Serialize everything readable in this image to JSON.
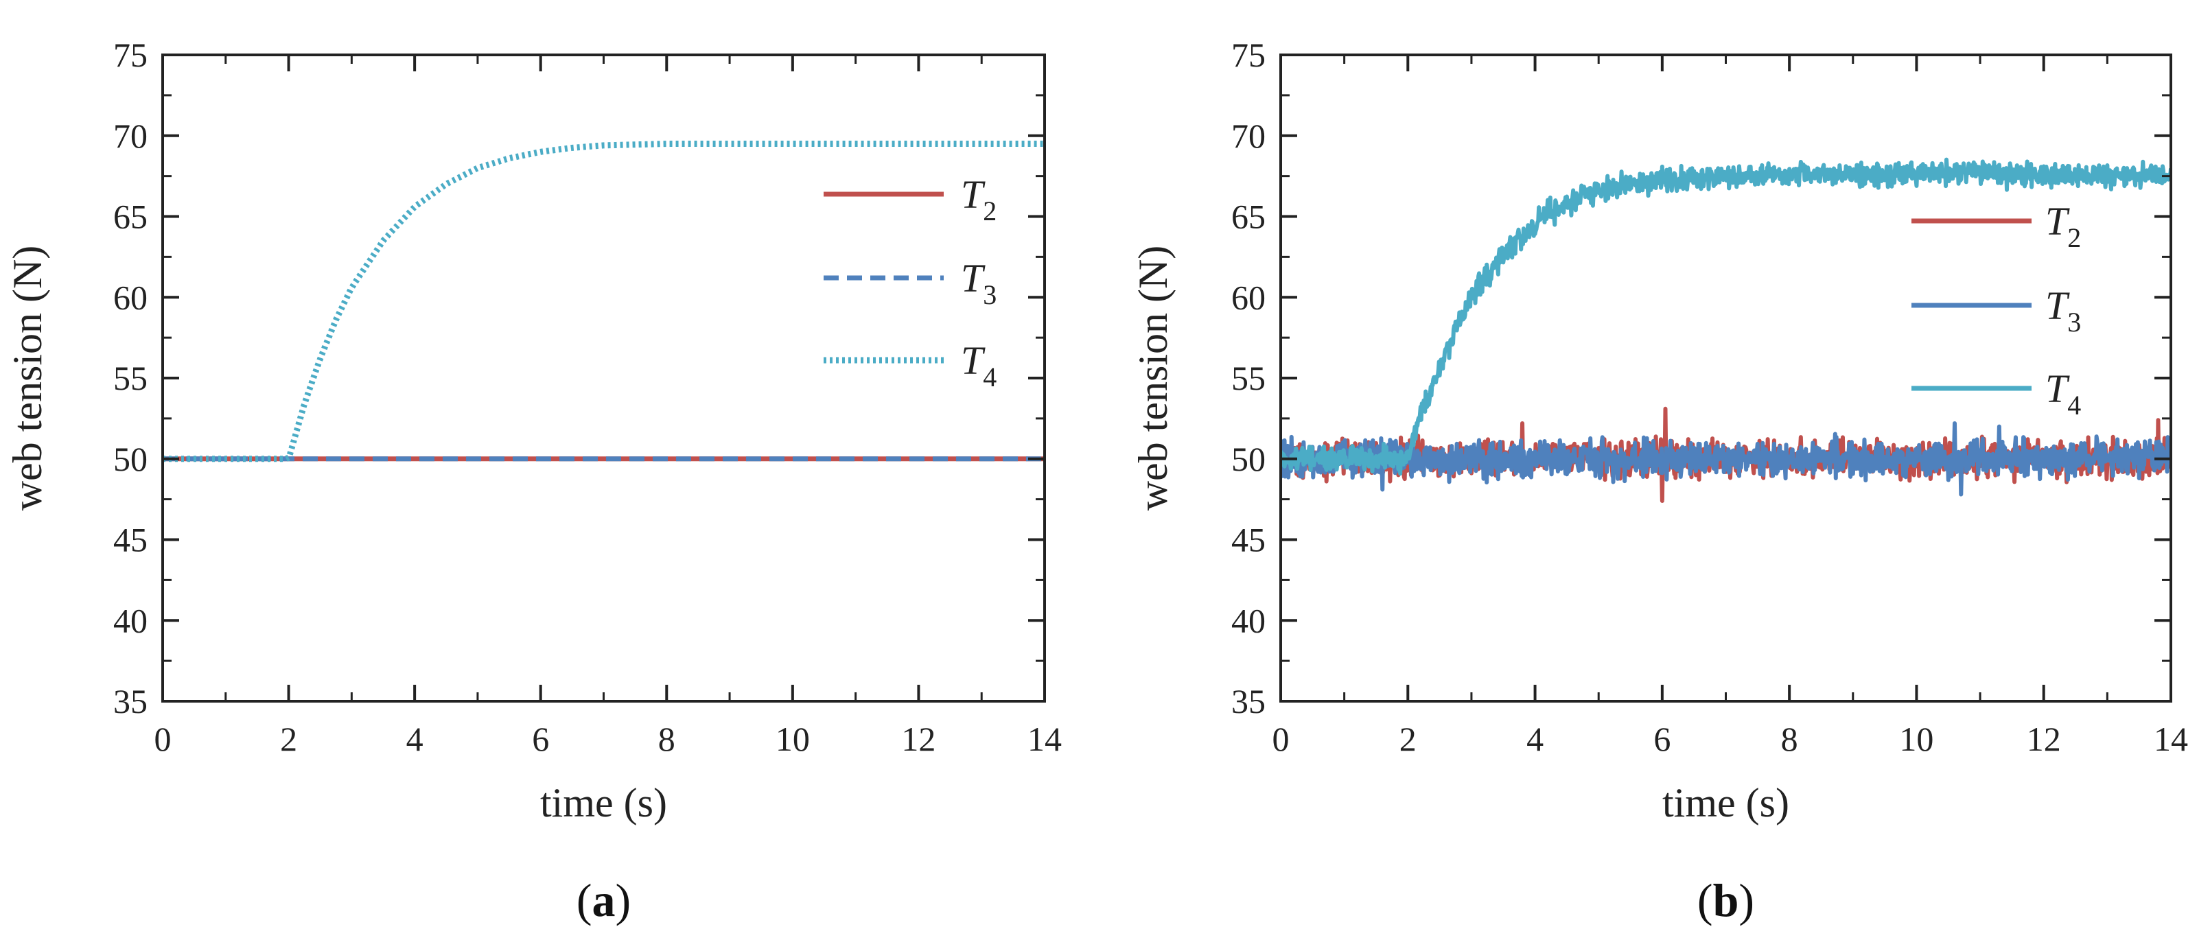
{
  "colors": {
    "T2": "#c0504d",
    "T3": "#4f81bd",
    "T4": "#4bacc6",
    "axis": "#222222"
  },
  "chart_data": [
    {
      "id": "a",
      "type": "line",
      "panel_label": {
        "open": "(",
        "letter": "a",
        "close": ")"
      },
      "xlabel": "time (s)",
      "ylabel": "web tension (N)",
      "xlim": [
        0,
        14
      ],
      "ylim": [
        35,
        75
      ],
      "xticks": [
        0,
        2,
        4,
        6,
        8,
        10,
        12,
        14
      ],
      "yticks": [
        35,
        40,
        45,
        50,
        55,
        60,
        65,
        70,
        75
      ],
      "legend_position": "right",
      "series": [
        {
          "key": "T2",
          "name": "T",
          "sub": "2",
          "style": "solid",
          "x": [
            0,
            14
          ],
          "y": [
            50,
            50
          ]
        },
        {
          "key": "T3",
          "name": "T",
          "sub": "3",
          "style": "dashed",
          "x": [
            0,
            14
          ],
          "y": [
            50,
            50
          ]
        },
        {
          "key": "T4",
          "name": "T",
          "sub": "4",
          "style": "dotted",
          "x": [
            0,
            1,
            2,
            2.25,
            2.5,
            2.75,
            3,
            3.5,
            4,
            4.5,
            5,
            5.5,
            6,
            6.5,
            7,
            8,
            9,
            10,
            11,
            12,
            13,
            14
          ],
          "y": [
            50,
            50,
            50,
            53.4,
            56.2,
            58.6,
            60.6,
            63.5,
            65.6,
            67.0,
            68.0,
            68.6,
            69.0,
            69.25,
            69.4,
            69.5,
            69.5,
            69.5,
            69.5,
            69.5,
            69.5,
            69.5
          ]
        }
      ]
    },
    {
      "id": "b",
      "type": "line",
      "panel_label": {
        "open": "(",
        "letter": "b",
        "close": ")"
      },
      "xlabel": "time (s)",
      "ylabel": "web tension (N)",
      "xlim": [
        0,
        14
      ],
      "ylim": [
        35,
        75
      ],
      "xticks": [
        0,
        2,
        4,
        6,
        8,
        10,
        12,
        14
      ],
      "yticks": [
        35,
        40,
        45,
        50,
        55,
        60,
        65,
        70,
        75
      ],
      "legend_position": "right",
      "series": [
        {
          "key": "T2",
          "name": "T",
          "sub": "2",
          "style": "solid",
          "noisy": true,
          "noise_amplitude": 0.9,
          "x": [
            0,
            14
          ],
          "y": [
            50,
            50
          ],
          "spikes": [
            {
              "x": 6.05,
              "y": 53.1
            },
            {
              "x": 6.0,
              "y": 47.4
            },
            {
              "x": 3.8,
              "y": 52.2
            },
            {
              "x": 13.8,
              "y": 52.4
            }
          ]
        },
        {
          "key": "T3",
          "name": "T",
          "sub": "3",
          "style": "solid",
          "noisy": true,
          "noise_amplitude": 0.9,
          "x": [
            0,
            14
          ],
          "y": [
            50,
            50
          ],
          "spikes": [
            {
              "x": 10.6,
              "y": 52.2
            },
            {
              "x": 11.3,
              "y": 52.0
            },
            {
              "x": 10.7,
              "y": 47.8
            },
            {
              "x": 1.6,
              "y": 48.1
            }
          ]
        },
        {
          "key": "T4",
          "name": "T",
          "sub": "4",
          "style": "solid",
          "noisy": true,
          "noise_amplitude": 0.6,
          "x": [
            0,
            1,
            2,
            2.25,
            2.5,
            2.75,
            3,
            3.5,
            4,
            4.5,
            5,
            5.5,
            6,
            7,
            8,
            9,
            10,
            11,
            12,
            13,
            14
          ],
          "y": [
            50,
            50,
            50,
            53.2,
            55.8,
            58.0,
            60.0,
            62.7,
            64.6,
            65.8,
            66.6,
            67.0,
            67.3,
            67.5,
            67.6,
            67.6,
            67.6,
            67.8,
            67.5,
            67.6,
            67.5
          ]
        }
      ]
    }
  ]
}
